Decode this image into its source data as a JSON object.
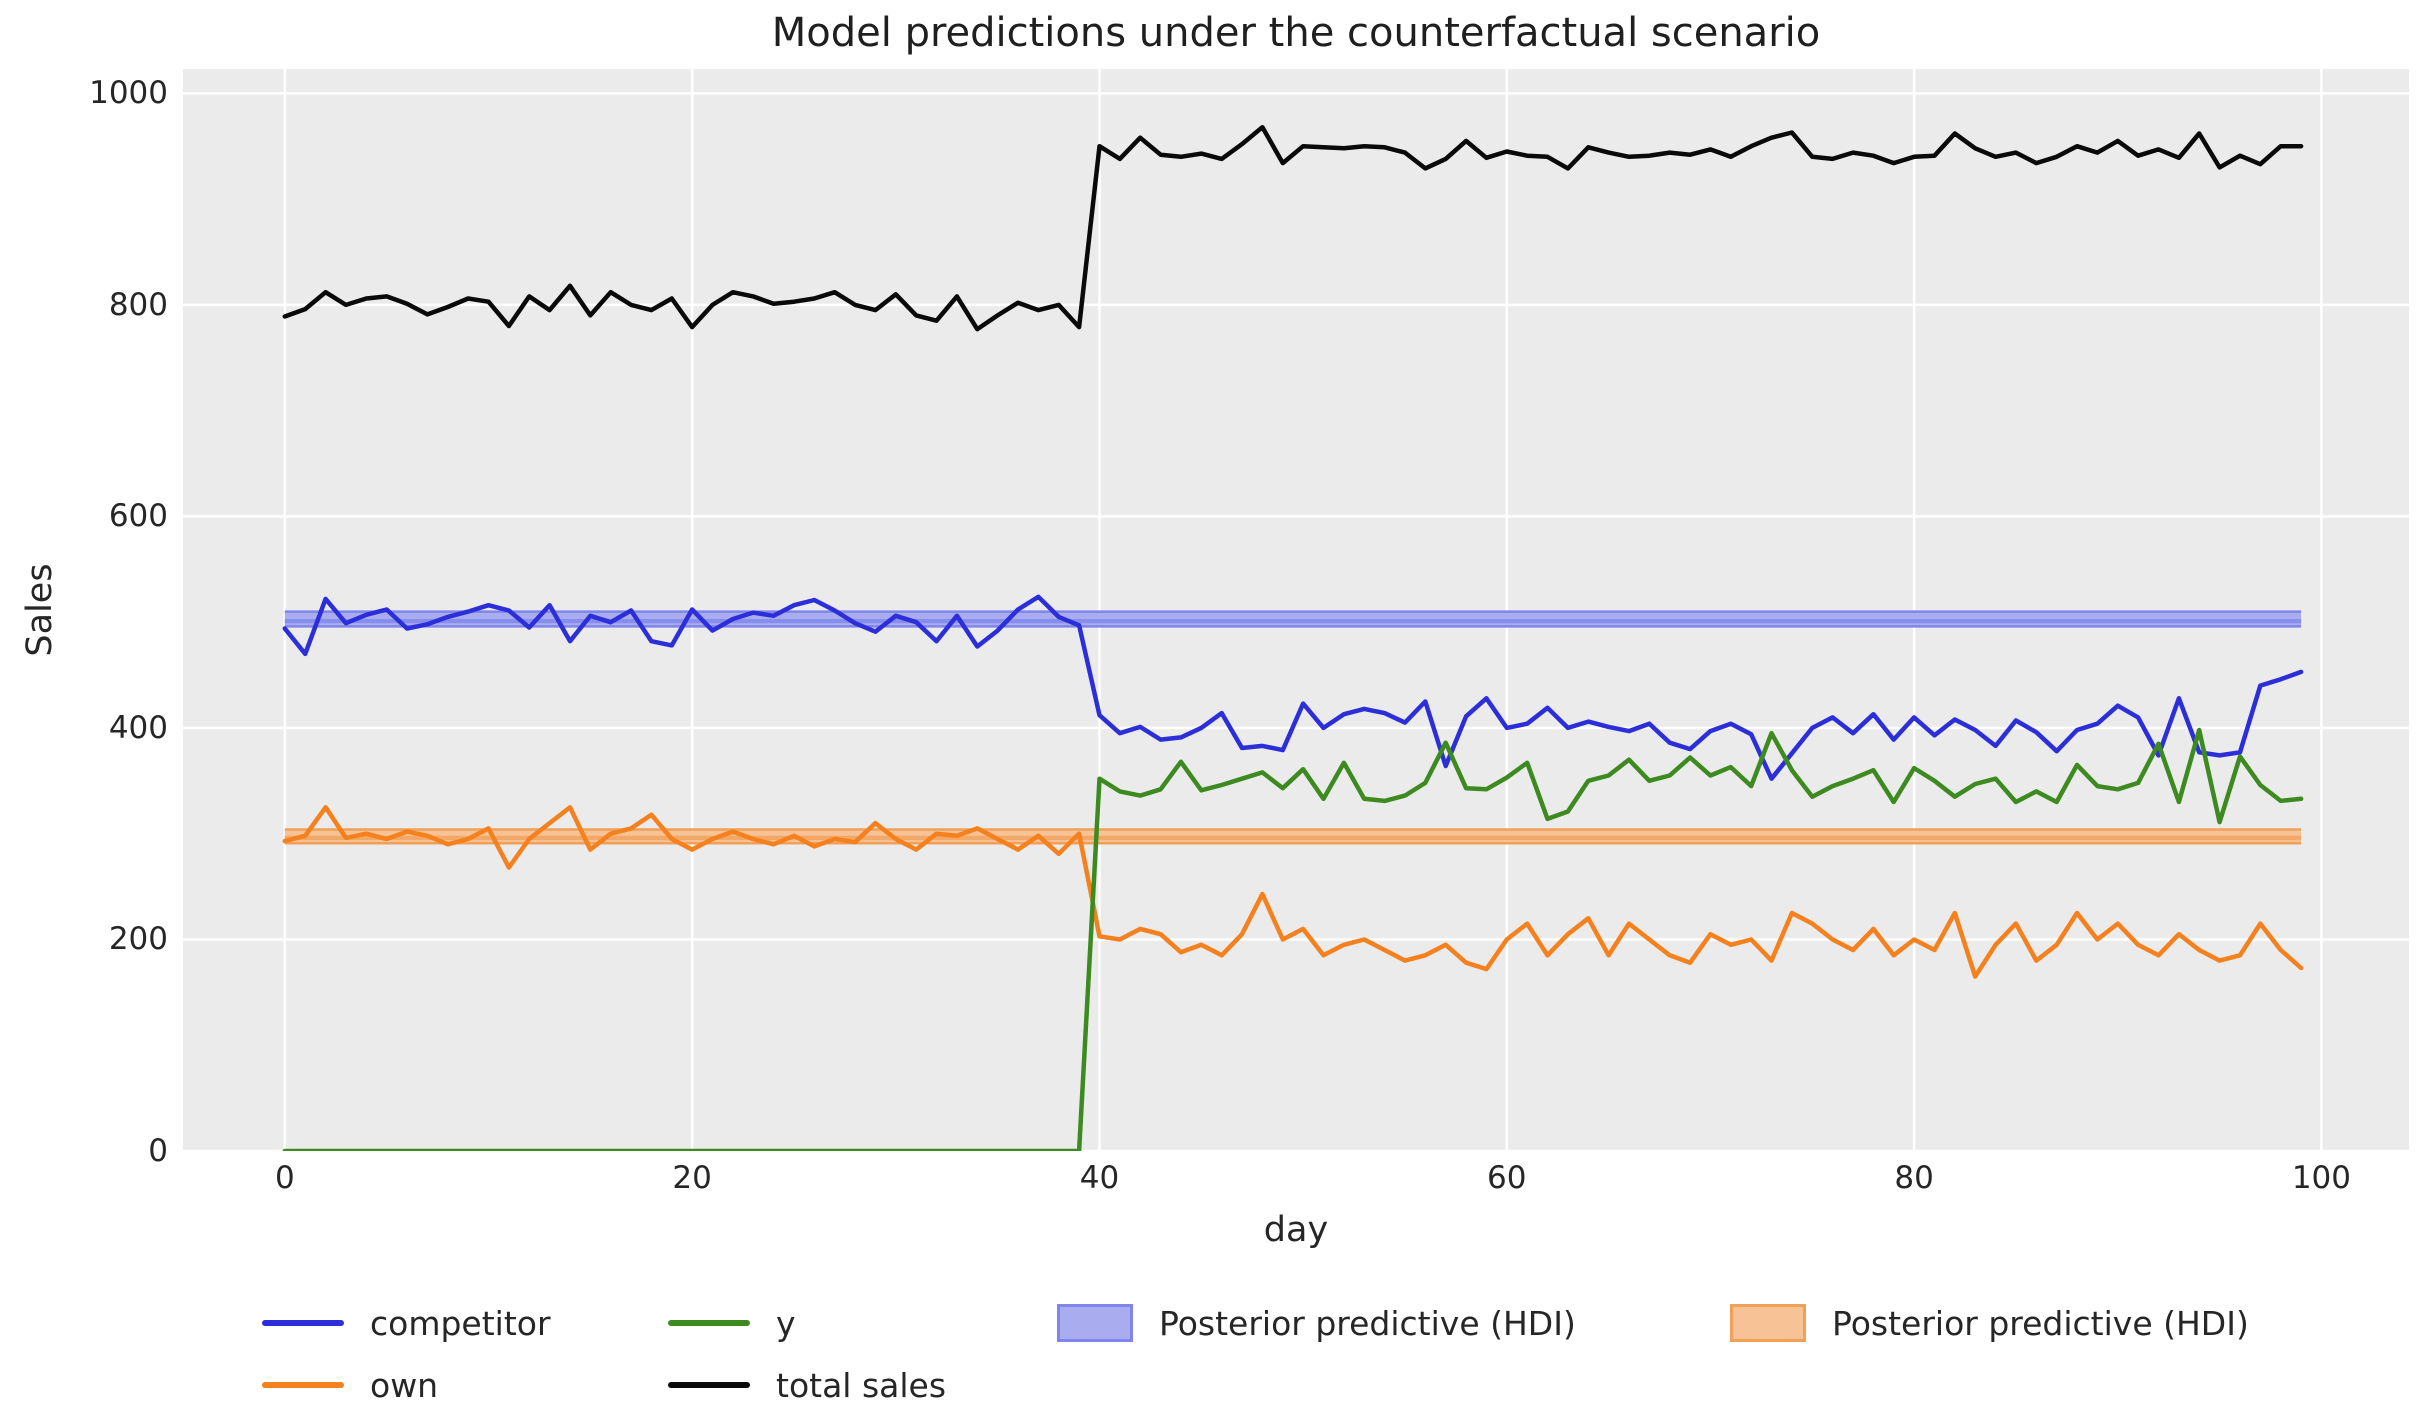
{
  "chart_data": {
    "type": "line",
    "title": "Model predictions under the counterfactual scenario",
    "xlabel": "day",
    "ylabel": "Sales",
    "x_ticks": [
      0,
      20,
      40,
      60,
      80,
      100
    ],
    "y_ticks": [
      0,
      200,
      400,
      600,
      800,
      1000
    ],
    "xlim": [
      -5,
      104.3
    ],
    "ylim": [
      0,
      1023
    ],
    "x_range": [
      0,
      99
    ],
    "n_points": 100,
    "grid": "white gridlines on light gray background",
    "legend_position": "below plot, two rows",
    "series": [
      {
        "name": "competitor",
        "color": "#2c2fd9",
        "values": [
          494,
          470,
          522,
          499,
          507,
          512,
          494,
          498,
          505,
          510,
          516,
          511,
          495,
          516,
          482,
          506,
          500,
          511,
          482,
          478,
          512,
          492,
          503,
          509,
          506,
          516,
          521,
          511,
          499,
          491,
          506,
          500,
          482,
          506,
          477,
          492,
          512,
          524,
          505,
          497,
          412,
          395,
          401,
          389,
          391,
          400,
          414,
          381,
          383,
          379,
          423,
          400,
          413,
          418,
          414,
          405,
          425,
          364,
          411,
          428,
          400,
          404,
          419,
          400,
          406,
          401,
          397,
          404,
          386,
          380,
          397,
          404,
          394,
          352,
          376,
          400,
          410,
          395,
          413,
          389,
          410,
          393,
          408,
          398,
          383,
          407,
          396,
          378,
          398,
          404,
          421,
          410,
          374,
          428,
          377,
          374,
          377,
          440,
          446,
          453
        ]
      },
      {
        "name": "own",
        "color": "#f5801e",
        "values": [
          293,
          298,
          325,
          296,
          300,
          295,
          302,
          298,
          290,
          295,
          305,
          268,
          295,
          310,
          325,
          285,
          300,
          305,
          318,
          295,
          285,
          295,
          302,
          295,
          290,
          298,
          288,
          295,
          292,
          310,
          295,
          285,
          300,
          298,
          305,
          295,
          285,
          298,
          281,
          300,
          203,
          200,
          210,
          205,
          188,
          195,
          185,
          205,
          243,
          200,
          210,
          185,
          195,
          200,
          190,
          180,
          185,
          195,
          178,
          172,
          200,
          215,
          185,
          205,
          220,
          185,
          215,
          200,
          185,
          178,
          205,
          195,
          200,
          180,
          225,
          215,
          200,
          190,
          210,
          185,
          200,
          190,
          225,
          165,
          195,
          215,
          180,
          195,
          225,
          200,
          215,
          195,
          185,
          205,
          190,
          180,
          185,
          215,
          190,
          173
        ]
      },
      {
        "name": "y",
        "color": "#3d8b20",
        "values": [
          0,
          0,
          0,
          0,
          0,
          0,
          0,
          0,
          0,
          0,
          0,
          0,
          0,
          0,
          0,
          0,
          0,
          0,
          0,
          0,
          0,
          0,
          0,
          0,
          0,
          0,
          0,
          0,
          0,
          0,
          0,
          0,
          0,
          0,
          0,
          0,
          0,
          0,
          0,
          0,
          352,
          340,
          336,
          342,
          368,
          341,
          346,
          352,
          358,
          343,
          361,
          333,
          367,
          333,
          331,
          336,
          348,
          386,
          343,
          342,
          353,
          367,
          314,
          321,
          350,
          355,
          370,
          350,
          355,
          372,
          355,
          363,
          345,
          395,
          360,
          335,
          345,
          352,
          360,
          330,
          362,
          350,
          335,
          347,
          352,
          330,
          340,
          330,
          365,
          345,
          342,
          348,
          385,
          330,
          398,
          311,
          373,
          346,
          331,
          333
        ]
      },
      {
        "name": "total sales",
        "color": "#0a0a0a",
        "values": [
          789,
          796,
          812,
          800,
          806,
          808,
          801,
          791,
          798,
          806,
          803,
          780,
          808,
          795,
          818,
          790,
          812,
          800,
          795,
          806,
          779,
          800,
          812,
          808,
          801,
          803,
          806,
          812,
          800,
          795,
          810,
          790,
          785,
          808,
          777,
          790,
          802,
          795,
          800,
          779,
          950,
          938,
          958,
          942,
          940,
          943,
          938,
          952,
          968,
          934,
          950,
          949,
          948,
          950,
          949,
          944,
          929,
          938,
          955,
          939,
          945,
          941,
          940,
          929,
          949,
          944,
          940,
          941,
          944,
          942,
          947,
          940,
          950,
          958,
          963,
          940,
          938,
          944,
          941,
          934,
          940,
          941,
          962,
          948,
          940,
          944,
          934,
          940,
          950,
          944,
          955,
          941,
          947,
          939,
          962,
          930,
          941,
          933,
          950,
          950
        ]
      }
    ],
    "bands": [
      {
        "name": "Posterior predictive (HDI)",
        "for_series": "competitor",
        "lo": 496,
        "hi": 510,
        "mean_lo": 499,
        "mean_hi": 503,
        "x_from": 0,
        "x_to": 99,
        "fill": "#a9adf0",
        "edge": "#7f85ea",
        "inner": "#888eec"
      },
      {
        "name": "Posterior predictive (HDI)",
        "for_series": "own",
        "lo": 291,
        "hi": 304,
        "mean_lo": 294,
        "mean_hi": 298,
        "x_from": 0,
        "x_to": 99,
        "fill": "#f6c296",
        "edge": "#f0a057",
        "inner": "#f2a866"
      }
    ]
  },
  "legend": {
    "rows": [
      [
        {
          "type": "line",
          "label": "competitor",
          "color": "#2c2fd9"
        },
        {
          "type": "line",
          "label": "y",
          "color": "#3d8b20"
        },
        {
          "type": "patch",
          "label": "Posterior predictive (HDI)",
          "fill": "#a9adf0",
          "edge": "#7f85ea"
        },
        {
          "type": "patch",
          "label": "Posterior predictive (HDI)",
          "fill": "#f6c296",
          "edge": "#f0a057"
        }
      ],
      [
        {
          "type": "line",
          "label": "own",
          "color": "#f5801e"
        },
        {
          "type": "line",
          "label": "total sales",
          "color": "#0a0a0a"
        }
      ]
    ]
  },
  "colors": {
    "figure_background": "#ffffff",
    "plot_background": "#ebebeb",
    "gridline": "#ffffff",
    "text": "#262626"
  }
}
